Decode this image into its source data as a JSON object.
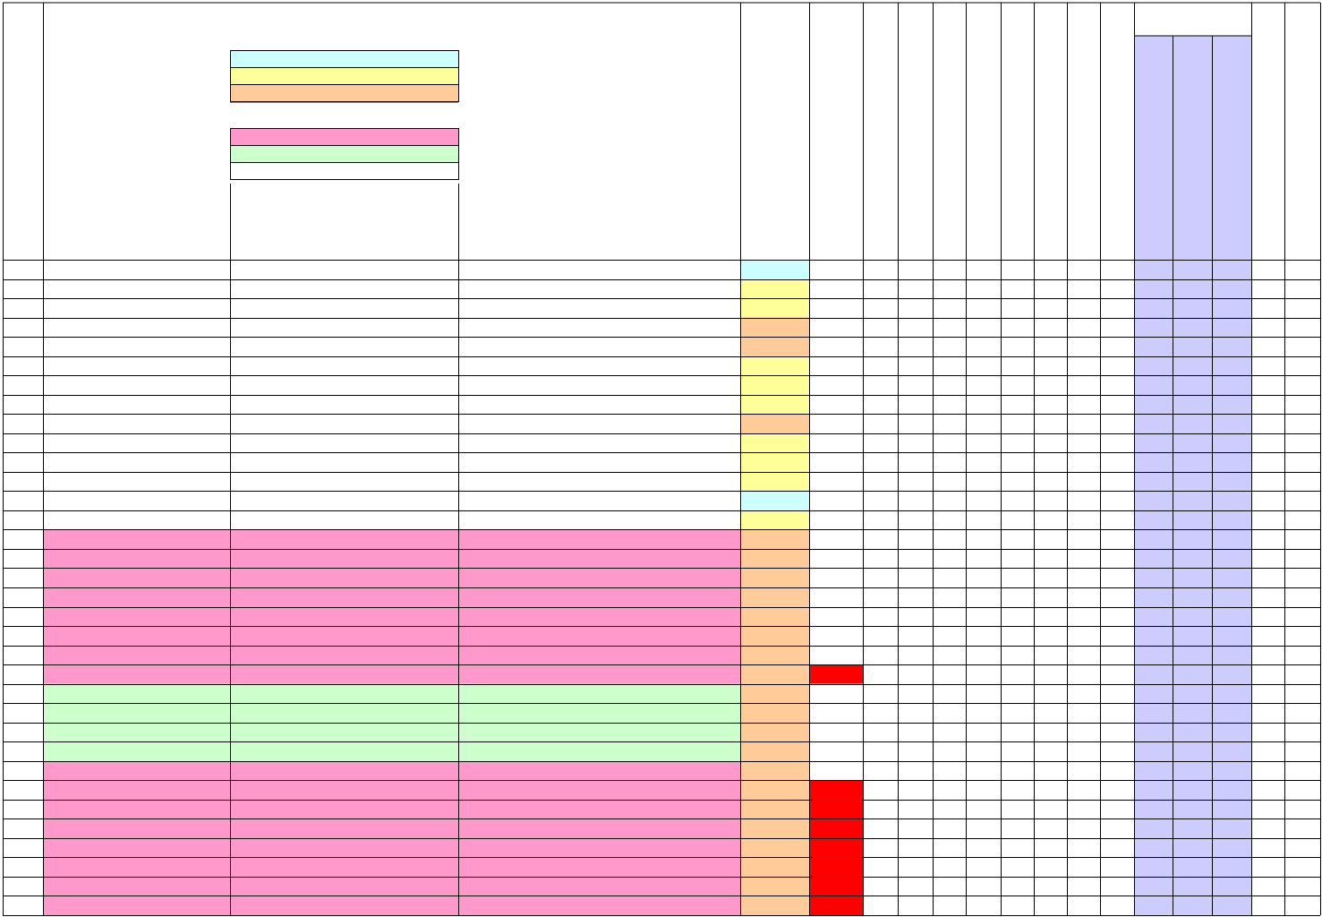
{
  "sheet": {
    "legend_colors": [
      "#ccffff",
      "#ffff99",
      "#ffcc99",
      "#ff99cc",
      "#ccffcc",
      "#ffffff"
    ],
    "name_colors": [
      "#ffffff",
      "#ffffff",
      "#ffffff",
      "#ffffff",
      "#ffffff",
      "#ffffff",
      "#ffffff",
      "#ffffff",
      "#ffffff",
      "#ffffff",
      "#ffffff",
      "#ffffff",
      "#ffffff",
      "#ffffff",
      "#ff99cc",
      "#ff99cc",
      "#ff99cc",
      "#ff99cc",
      "#ff99cc",
      "#ff99cc",
      "#ff99cc",
      "#ff99cc",
      "#ccffcc",
      "#ccffcc",
      "#ccffcc",
      "#ccffcc",
      "#ff99cc",
      "#ff99cc",
      "#ff99cc",
      "#ff99cc",
      "#ff99cc",
      "#ff99cc",
      "#ff99cc",
      "#ff99cc"
    ],
    "status_colors": [
      "#ccffff",
      "#ffff99",
      "#ffff99",
      "#ffcc99",
      "#ffcc99",
      "#ffff99",
      "#ffff99",
      "#ffff99",
      "#ffcc99",
      "#ffff99",
      "#ffff99",
      "#ffff99",
      "#ccffff",
      "#ffff99",
      "#ffcc99",
      "#ffcc99",
      "#ffcc99",
      "#ffcc99",
      "#ffcc99",
      "#ffcc99",
      "#ffcc99",
      "#ffcc99",
      "#ffcc99",
      "#ffcc99",
      "#ffcc99",
      "#ffcc99",
      "#ffcc99",
      "#ffcc99",
      "#ffcc99",
      "#ffcc99",
      "#ffcc99",
      "#ffcc99",
      "#ffcc99",
      "#ffcc99"
    ],
    "flag_colors": [
      "#ffffff",
      "#ffffff",
      "#ffffff",
      "#ffffff",
      "#ffffff",
      "#ffffff",
      "#ffffff",
      "#ffffff",
      "#ffffff",
      "#ffffff",
      "#ffffff",
      "#ffffff",
      "#ffffff",
      "#ffffff",
      "#ffffff",
      "#ffffff",
      "#ffffff",
      "#ffffff",
      "#ffffff",
      "#ffffff",
      "#ffffff",
      "#ff0000",
      "#ffffff",
      "#ffffff",
      "#ffffff",
      "#ffffff",
      "#ffffff",
      "#ff0000",
      "#ff0000",
      "#ff0000",
      "#ff0000",
      "#ff0000",
      "#ff0000",
      "#ff0000"
    ],
    "highlight_color": "#ccccff"
  }
}
